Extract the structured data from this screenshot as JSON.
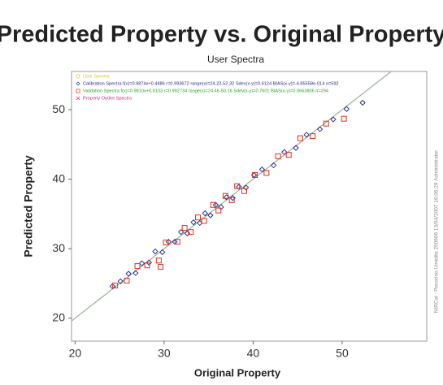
{
  "chart_data": {
    "type": "scatter",
    "title": "Predicted Property vs. Original Property",
    "subtitle": "User Spectra",
    "x_label": "Original Property",
    "y_label": "Predicted Property",
    "side_note": "NIRCal : Pecorino Umidita 250606 13/04/2007 16:06:29 Administrator",
    "xlim": [
      19.6,
      59.5
    ],
    "ylim": [
      16.7,
      55.5
    ],
    "xticks": [
      20,
      30,
      40,
      50
    ],
    "yticks": [
      20,
      30,
      40,
      50
    ],
    "grid": false,
    "legend": "upper left",
    "series": [
      {
        "name": "User Spectra",
        "color": "#d8c020",
        "marker": "circle",
        "x": [],
        "values": []
      },
      {
        "name": "Calibration Spectra f(x)=0.9874x+0.4486 r=0.993672 range(x)=24.22-52.32 Sdev(x-y)=0.6124 BIAS(x-y)=-4.85558e-014 n=592",
        "color": "#1f1f8a",
        "marker": "diamond",
        "x": [
          24.2,
          25.1,
          26.0,
          26.8,
          27.5,
          28.3,
          29.0,
          29.8,
          30.5,
          31.2,
          31.9,
          32.6,
          33.3,
          34.0,
          34.6,
          35.2,
          35.8,
          36.4,
          37.0,
          37.7,
          38.4,
          39.2,
          40.1,
          41.0,
          42.3,
          43.5,
          44.8,
          46.0,
          47.5,
          49.0,
          50.5,
          52.3
        ],
        "values": [
          24.6,
          25.3,
          26.4,
          26.5,
          27.9,
          28.0,
          29.6,
          29.5,
          31.0,
          31.0,
          32.4,
          32.2,
          33.8,
          33.7,
          35.1,
          34.8,
          36.3,
          36.0,
          37.4,
          37.3,
          38.9,
          38.8,
          40.6,
          41.4,
          42.0,
          43.9,
          44.5,
          46.4,
          47.2,
          48.6,
          50.1,
          51.0
        ]
      },
      {
        "name": "Validation Spectra f(x)=0.9810x+0.6103 r=0.992734 range(x)=24.46-50.16 Sdev(x-y)=0.7601 BIAS(x-y)=0.0663806 n=294",
        "color": "#e0301e",
        "label_color": "#2a9a2a",
        "marker": "square",
        "x": [
          24.5,
          25.8,
          27.0,
          28.1,
          29.4,
          29.6,
          30.2,
          31.5,
          32.3,
          33.0,
          33.8,
          34.5,
          35.5,
          36.1,
          36.9,
          37.6,
          38.2,
          39.0,
          40.2,
          41.5,
          42.8,
          44.0,
          45.3,
          46.7,
          48.2,
          50.2
        ],
        "values": [
          24.7,
          25.4,
          27.5,
          27.6,
          28.3,
          27.4,
          30.9,
          31.0,
          33.0,
          32.4,
          34.5,
          34.0,
          36.3,
          35.5,
          37.6,
          37.0,
          39.0,
          38.3,
          40.6,
          40.9,
          43.3,
          43.5,
          45.9,
          46.2,
          48.0,
          48.7
        ]
      },
      {
        "name": "Property Outlier Spectra",
        "color": "#d0208a",
        "marker": "cross",
        "x": [],
        "values": []
      }
    ]
  }
}
